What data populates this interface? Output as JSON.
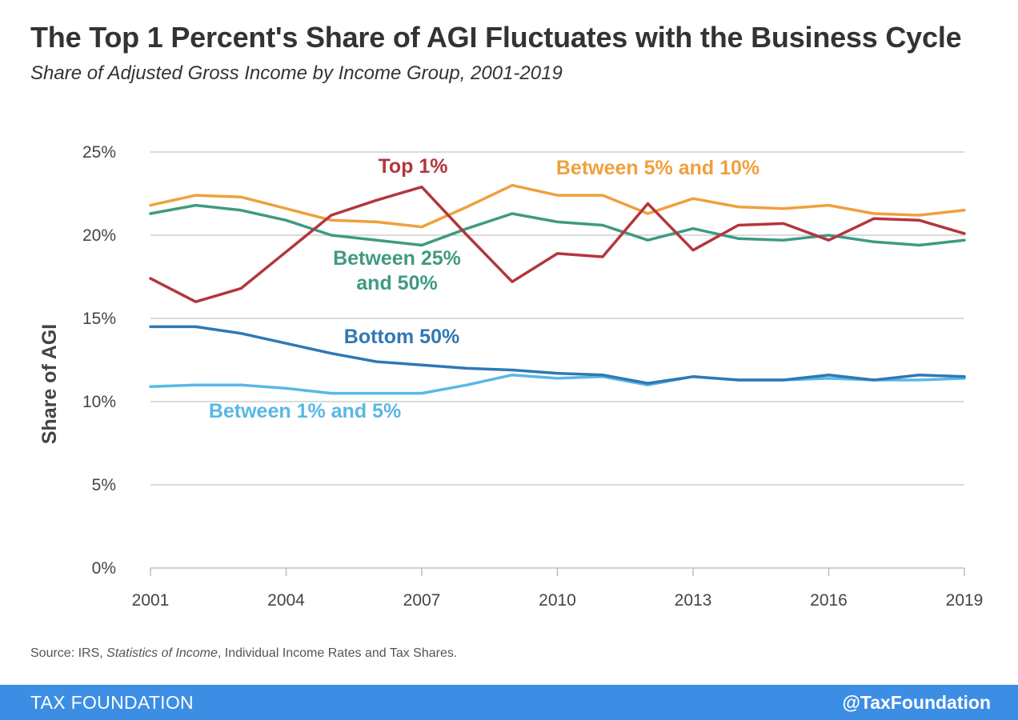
{
  "header": {
    "title": "The Top 1 Percent's Share of AGI Fluctuates with the Business Cycle",
    "subtitle": "Share of Adjusted Gross Income by Income Group, 2001-2019"
  },
  "source": {
    "prefix": "Source: IRS, ",
    "italic": "Statistics of Income",
    "suffix": ", Individual Income Rates and Tax Shares."
  },
  "footer": {
    "brand": "TAX FOUNDATION",
    "handle": "@TaxFoundation",
    "color": "#3c8ee4"
  },
  "chart_data": {
    "type": "line",
    "title": "The Top 1 Percent's Share of AGI Fluctuates with the Business Cycle",
    "subtitle": "Share of Adjusted Gross Income by Income Group, 2001-2019",
    "xlabel": "",
    "ylabel": "Share of AGI",
    "x": [
      2001,
      2002,
      2003,
      2004,
      2005,
      2006,
      2007,
      2008,
      2009,
      2010,
      2011,
      2012,
      2013,
      2014,
      2015,
      2016,
      2017,
      2018,
      2019
    ],
    "xticks": [
      "2001",
      "2004",
      "2007",
      "2010",
      "2013",
      "2016",
      "2019"
    ],
    "xlim": [
      2001,
      2019
    ],
    "ylim": [
      0,
      25
    ],
    "yticks": [
      {
        "value": 0,
        "label": "0%"
      },
      {
        "value": 5,
        "label": "5%"
      },
      {
        "value": 10,
        "label": "10%"
      },
      {
        "value": 15,
        "label": "15%"
      },
      {
        "value": 20,
        "label": "20%"
      },
      {
        "value": 25,
        "label": "25%"
      }
    ],
    "grid": true,
    "legend": "inline labels",
    "series": [
      {
        "name": "Between 5% and 10%",
        "color": "#f0a03c",
        "values": [
          21.8,
          22.4,
          22.3,
          21.6,
          20.9,
          20.8,
          20.5,
          21.7,
          23.0,
          22.4,
          22.4,
          21.3,
          22.2,
          21.7,
          21.6,
          21.8,
          21.3,
          21.2,
          21.5
        ]
      },
      {
        "name": "Between 25% and 50%",
        "color": "#3f9a82",
        "values": [
          21.3,
          21.8,
          21.5,
          20.9,
          20.0,
          19.7,
          19.4,
          20.4,
          21.3,
          20.8,
          20.6,
          19.7,
          20.4,
          19.8,
          19.7,
          20.0,
          19.6,
          19.4,
          19.7
        ]
      },
      {
        "name": "Top 1%",
        "color": "#b3363e",
        "values": [
          17.4,
          16.0,
          16.8,
          19.0,
          21.2,
          22.1,
          22.9,
          20.0,
          17.2,
          18.9,
          18.7,
          21.9,
          19.1,
          20.6,
          20.7,
          19.7,
          21.0,
          20.9,
          20.1
        ]
      },
      {
        "name": "Bottom 50%",
        "color": "#2f78b4",
        "values": [
          14.5,
          14.5,
          14.1,
          13.5,
          12.9,
          12.4,
          12.2,
          12.0,
          11.9,
          11.7,
          11.6,
          11.1,
          11.5,
          11.3,
          11.3,
          11.6,
          11.3,
          11.6,
          11.5
        ]
      },
      {
        "name": "Between 1% and 5%",
        "color": "#58b8e6",
        "values": [
          10.9,
          11.0,
          11.0,
          10.8,
          10.5,
          10.5,
          10.5,
          11.0,
          11.6,
          11.4,
          11.5,
          11.0,
          11.5,
          11.3,
          11.3,
          11.4,
          11.3,
          11.3,
          11.4
        ]
      }
    ],
    "labels": [
      {
        "lines": [
          "Top 1%"
        ],
        "color": "#b3363e"
      },
      {
        "lines": [
          "Between 5% and 10%"
        ],
        "color": "#f0a03c"
      },
      {
        "lines": [
          "Between 25%",
          "and 50%"
        ],
        "color": "#3f9a82"
      },
      {
        "lines": [
          "Bottom 50%"
        ],
        "color": "#2f78b4"
      },
      {
        "lines": [
          "Between 1% and 5%"
        ],
        "color": "#58b8e6"
      }
    ]
  }
}
